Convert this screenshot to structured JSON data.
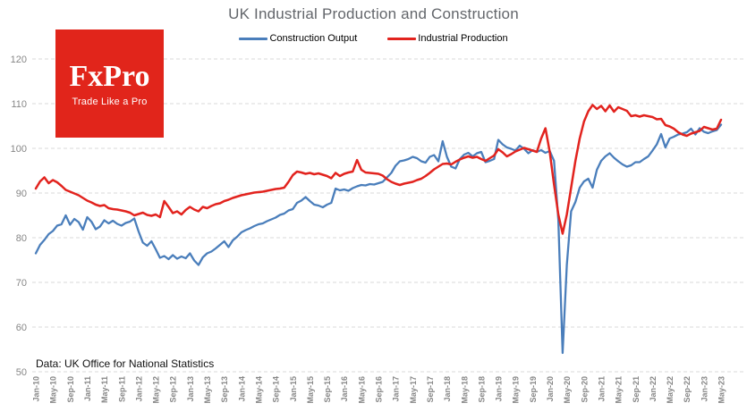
{
  "title": "UK Industrial Production and Construction",
  "footnote": "Data: UK Office for National Statistics",
  "logo": {
    "brand": "FxPro",
    "tagline": "Trade Like a Pro",
    "bg": "#e1251b"
  },
  "legend": [
    {
      "label": "Construction Output",
      "color": "#4a7ebb"
    },
    {
      "label": "Industrial Production",
      "color": "#e2231e"
    }
  ],
  "colors": {
    "grid": "#dadada",
    "tick_label": "#868686",
    "title": "#63666b"
  },
  "chart_data": {
    "type": "line",
    "frequency": "monthly",
    "x_range": [
      "Jan-2010",
      "May-2023"
    ],
    "x_ticklabels": [
      "Jan-10",
      "May-10",
      "Sep-10",
      "Jan-11",
      "May-11",
      "Sep-11",
      "Jan-12",
      "May-12",
      "Sep-12",
      "Jan-13",
      "May-13",
      "Sep-13",
      "Jan-14",
      "May-14",
      "Sep-14",
      "Jan-15",
      "May-15",
      "Sep-15",
      "Jan-16",
      "May-16",
      "Sep-16",
      "Jan-17",
      "May-17",
      "Sep-17",
      "Jan-18",
      "May-18",
      "Sep-18",
      "Jan-19",
      "May-19",
      "Sep-19",
      "Jan-20",
      "May-20",
      "Sep-20",
      "Jan-21",
      "May-21",
      "Sep-21",
      "Jan-22",
      "May-22",
      "Sep-22",
      "Jan-23",
      "May-23"
    ],
    "tick_every_months": 4,
    "yticks": [
      50,
      60,
      70,
      80,
      90,
      100,
      110,
      120
    ],
    "ylim": [
      50,
      125
    ],
    "grid": "dashed-horizontal",
    "legend_position": "top-center",
    "series": [
      {
        "name": "Construction Output",
        "color": "#4a7ebb",
        "values": [
          76.5,
          78.4,
          79.5,
          80.8,
          81.5,
          82.7,
          83.0,
          85.0,
          82.9,
          84.2,
          83.5,
          81.8,
          84.6,
          83.6,
          81.9,
          82.5,
          83.9,
          83.2,
          83.8,
          83.1,
          82.7,
          83.3,
          83.6,
          84.3,
          81.4,
          78.9,
          78.2,
          79.2,
          77.4,
          75.5,
          75.9,
          75.2,
          76.1,
          75.3,
          75.8,
          75.4,
          76.5,
          74.9,
          73.9,
          75.6,
          76.5,
          76.9,
          77.6,
          78.4,
          79.2,
          77.9,
          79.4,
          80.2,
          81.2,
          81.7,
          82.1,
          82.6,
          83.0,
          83.2,
          83.7,
          84.1,
          84.5,
          85.1,
          85.4,
          86.1,
          86.4,
          87.8,
          88.3,
          89.1,
          88.2,
          87.4,
          87.2,
          86.8,
          87.4,
          87.8,
          91.0,
          90.6,
          90.8,
          90.5,
          91.1,
          91.5,
          91.8,
          91.7,
          92.0,
          91.9,
          92.2,
          92.5,
          93.5,
          94.5,
          96.1,
          97.1,
          97.3,
          97.6,
          98.1,
          97.8,
          97.1,
          96.8,
          98.1,
          98.5,
          97.1,
          101.6,
          98.1,
          95.9,
          95.5,
          97.6,
          98.6,
          99.0,
          98.2,
          98.9,
          99.2,
          96.9,
          97.2,
          97.6,
          101.9,
          100.9,
          100.2,
          99.9,
          99.5,
          100.6,
          99.9,
          98.9,
          99.6,
          99.2,
          99.6,
          99.0,
          99.4,
          97.2,
          84.0,
          54.2,
          73.9,
          85.9,
          88.0,
          91.2,
          92.6,
          93.2,
          91.2,
          95.2,
          97.2,
          98.2,
          98.9,
          97.9,
          97.1,
          96.4,
          95.9,
          96.2,
          96.9,
          96.9,
          97.6,
          98.2,
          99.5,
          100.9,
          103.2,
          100.2,
          102.2,
          102.6,
          103.1,
          103.3,
          103.6,
          104.4,
          103.1,
          104.5,
          103.7,
          103.4,
          103.8,
          104.1,
          105.3
        ]
      },
      {
        "name": "Industrial Production",
        "color": "#e2231e",
        "values": [
          91.0,
          92.6,
          93.5,
          92.2,
          92.9,
          92.4,
          91.6,
          90.7,
          90.3,
          89.9,
          89.5,
          88.9,
          88.3,
          87.9,
          87.4,
          87.1,
          87.3,
          86.6,
          86.4,
          86.3,
          86.1,
          85.9,
          85.6,
          85.0,
          85.3,
          85.6,
          85.1,
          84.9,
          85.2,
          84.6,
          88.2,
          86.9,
          85.5,
          85.9,
          85.2,
          86.2,
          86.9,
          86.3,
          85.9,
          86.9,
          86.6,
          87.1,
          87.5,
          87.7,
          88.2,
          88.5,
          88.9,
          89.2,
          89.5,
          89.7,
          89.9,
          90.1,
          90.2,
          90.3,
          90.5,
          90.7,
          90.9,
          91.0,
          91.2,
          92.5,
          94.0,
          94.8,
          94.6,
          94.3,
          94.5,
          94.2,
          94.4,
          94.1,
          93.8,
          93.3,
          94.5,
          93.8,
          94.3,
          94.6,
          94.8,
          97.4,
          95.2,
          94.6,
          94.5,
          94.4,
          94.3,
          93.9,
          93.1,
          92.5,
          92.1,
          91.8,
          92.1,
          92.3,
          92.5,
          92.9,
          93.2,
          93.8,
          94.5,
          95.3,
          95.9,
          96.5,
          96.6,
          96.4,
          97.0,
          97.5,
          97.9,
          98.2,
          97.9,
          98.1,
          97.6,
          97.2,
          97.8,
          98.4,
          99.8,
          99.1,
          98.2,
          98.7,
          99.3,
          99.7,
          100.1,
          99.8,
          99.5,
          99.2,
          102.2,
          104.5,
          99.2,
          91.9,
          85.2,
          80.9,
          85.2,
          91.2,
          97.2,
          102.2,
          106.0,
          108.3,
          109.7,
          108.8,
          109.5,
          108.3,
          109.6,
          108.2,
          109.2,
          108.8,
          108.4,
          107.2,
          107.4,
          107.1,
          107.4,
          107.2,
          107.0,
          106.5,
          106.6,
          105.2,
          104.9,
          104.4,
          103.6,
          103.1,
          102.8,
          103.3,
          103.6,
          103.9,
          104.8,
          104.5,
          104.2,
          104.4,
          106.4
        ]
      }
    ]
  }
}
